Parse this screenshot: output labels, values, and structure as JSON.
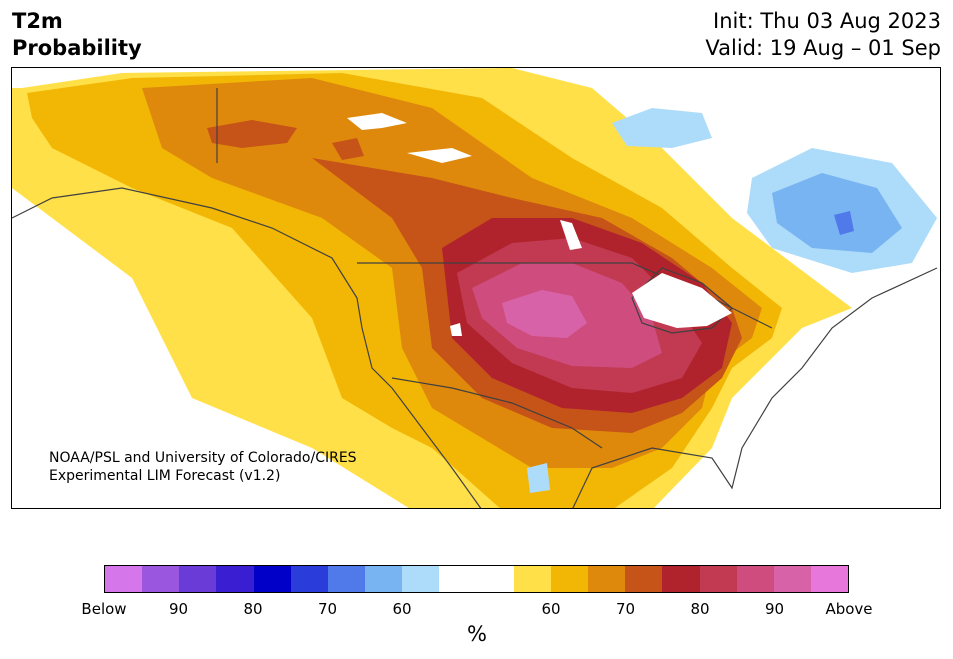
{
  "title": {
    "line1": "T2m",
    "line2": "Probability"
  },
  "header": {
    "init": "Init: Thu 03 Aug 2023",
    "valid": "Valid: 19 Aug – 01 Sep"
  },
  "credit": {
    "line1": "NOAA/PSL and University of Colorado/CIRES",
    "line2": "Experimental LIM Forecast (v1.2)"
  },
  "colorbar": {
    "unit": "%",
    "colors": [
      "#d576ea",
      "#9b56e0",
      "#6a3bd6",
      "#3a1fd2",
      "#0000c8",
      "#2a3cd9",
      "#5079ea",
      "#78b4f2",
      "#addcfa",
      "#ffffff",
      "#ffffff",
      "#ffe049",
      "#f2b705",
      "#df890c",
      "#c65317",
      "#b1232c",
      "#c13a52",
      "#ce4d7e",
      "#d862a8",
      "#e877dc"
    ],
    "tick_labels": [
      "Below",
      "90",
      "80",
      "70",
      "60",
      "60",
      "70",
      "80",
      "90",
      "Above"
    ]
  },
  "map_colors": {
    "y60": "#ffe049",
    "y70": "#f2b705",
    "o70": "#df890c",
    "r75": "#c65317",
    "r80": "#b1232c",
    "p85": "#c13a52",
    "p90": "#ce4d7e",
    "p95": "#d862a8",
    "b60": "#addcfa",
    "b70": "#78b4f2",
    "b80": "#5079ea"
  }
}
